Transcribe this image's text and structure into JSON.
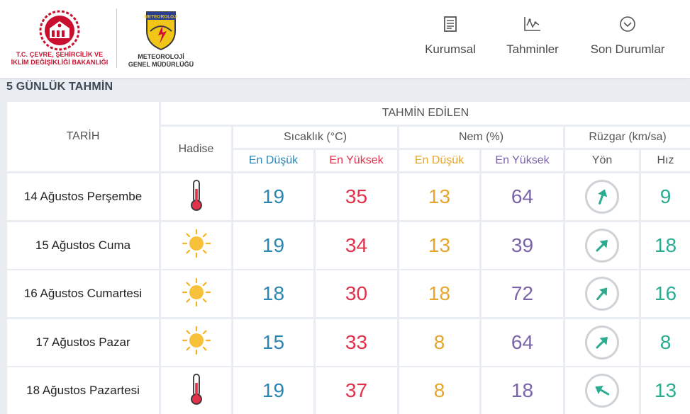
{
  "header": {
    "ministry_name_line1": "T.C. ÇEVRE, ŞEHİRCİLİK VE",
    "ministry_name_line2": "İKLİM DEĞİŞİKLİĞİ BAKANLIĞI",
    "met_logo_text": "METEOROLOJİ",
    "met_name_line1": "METEOROLOJİ",
    "met_name_line2": "GENEL MÜDÜRLÜĞÜ",
    "nav": [
      {
        "label": "Kurumsal",
        "icon": "document-icon"
      },
      {
        "label": "Tahminler",
        "icon": "chart-icon"
      },
      {
        "label": "Son Durumlar",
        "icon": "chevron-down-circle-icon"
      }
    ]
  },
  "section_title": "5 GÜNLÜK TAHMİN",
  "table": {
    "col_date": "TARİH",
    "group_forecast": "TAHMİN EDİLEN",
    "col_event": "Hadise",
    "group_temp": "Sıcaklık (°C)",
    "group_humidity": "Nem (%)",
    "group_wind": "Rüzgar (km/sa)",
    "temp_low": "En Düşük",
    "temp_high": "En Yüksek",
    "hum_low": "En Düşük",
    "hum_high": "En Yüksek",
    "wind_dir": "Yön",
    "wind_speed": "Hız",
    "colors": {
      "temp_low": "#2b86b3",
      "temp_high": "#e0324a",
      "hum_low": "#e6a52b",
      "hum_high": "#7a64a8",
      "wind": "#2bab8f"
    },
    "rows": [
      {
        "date": "14 Ağustos Perşembe",
        "icon": "thermometer-icon",
        "tmin": "19",
        "tmax": "35",
        "hmin": "13",
        "hmax": "64",
        "wind_dir_deg": 200,
        "wind_speed": "9"
      },
      {
        "date": "15 Ağustos Cuma",
        "icon": "sun-icon",
        "tmin": "19",
        "tmax": "34",
        "hmin": "13",
        "hmax": "39",
        "wind_dir_deg": 225,
        "wind_speed": "18"
      },
      {
        "date": "16 Ağustos Cumartesi",
        "icon": "sun-icon",
        "tmin": "18",
        "tmax": "30",
        "hmin": "18",
        "hmax": "72",
        "wind_dir_deg": 220,
        "wind_speed": "16"
      },
      {
        "date": "17 Ağustos Pazar",
        "icon": "sun-icon",
        "tmin": "15",
        "tmax": "33",
        "hmin": "8",
        "hmax": "64",
        "wind_dir_deg": 225,
        "wind_speed": "8"
      },
      {
        "date": "18 Ağustos Pazartesi",
        "icon": "thermometer-icon",
        "tmin": "19",
        "tmax": "37",
        "hmin": "8",
        "hmax": "18",
        "wind_dir_deg": 120,
        "wind_speed": "13"
      }
    ]
  }
}
